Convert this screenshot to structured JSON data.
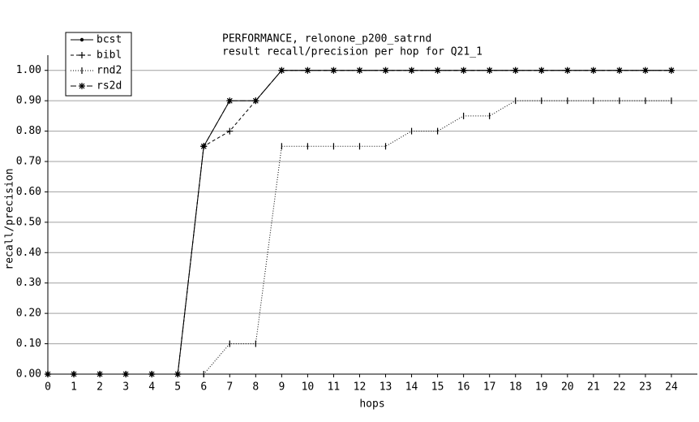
{
  "chart_data": {
    "type": "line",
    "title": "PERFORMANCE, relonone_p200_satrnd",
    "subtitle": "result recall/precision per hop for Q21_1",
    "x_label": "hops",
    "y_label": "recall/precision",
    "x": [
      0,
      1,
      2,
      3,
      4,
      5,
      6,
      7,
      8,
      9,
      10,
      11,
      12,
      13,
      14,
      15,
      16,
      17,
      18,
      19,
      20,
      21,
      22,
      23,
      24
    ],
    "series": [
      {
        "name": "bcst",
        "color": "#000000",
        "marker": "dot",
        "dash": "solid",
        "values": [
          0,
          0,
          0,
          0,
          0,
          0,
          0.75,
          0.9,
          0.9,
          1,
          1,
          1,
          1,
          1,
          1,
          1,
          1,
          1,
          1,
          1,
          1,
          1,
          1,
          1,
          1
        ]
      },
      {
        "name": "bibl",
        "color": "#000000",
        "marker": "plus",
        "dash": "dashed",
        "values": [
          0,
          0,
          0,
          0,
          0,
          0,
          0.75,
          0.8,
          0.9,
          1,
          1,
          1,
          1,
          1,
          1,
          1,
          1,
          1,
          1,
          1,
          1,
          1,
          1,
          1,
          1
        ]
      },
      {
        "name": "rnd2",
        "color": "#000000",
        "marker": "tick",
        "dash": "dotted",
        "values": [
          0,
          0,
          0,
          0,
          0,
          0,
          0,
          0.1,
          0.1,
          0.75,
          0.75,
          0.75,
          0.75,
          0.75,
          0.8,
          0.8,
          0.85,
          0.85,
          0.9,
          0.9,
          0.9,
          0.9,
          0.9,
          0.9,
          0.9
        ]
      },
      {
        "name": "rs2d",
        "color": "#000000",
        "marker": "star",
        "dash": "longdash",
        "values": [
          0,
          0,
          0,
          0,
          0,
          0,
          0.75,
          0.9,
          0.9,
          1,
          1,
          1,
          1,
          1,
          1,
          1,
          1,
          1,
          1,
          1,
          1,
          1,
          1,
          1,
          1
        ]
      }
    ],
    "xlim": [
      0,
      25
    ],
    "ylim": [
      0,
      1.05
    ],
    "xticks": [
      0,
      1,
      2,
      3,
      4,
      5,
      6,
      7,
      8,
      9,
      10,
      11,
      12,
      13,
      14,
      15,
      16,
      17,
      18,
      19,
      20,
      21,
      22,
      23,
      24
    ],
    "yticks": [
      {
        "value": 0,
        "label": "0.00"
      },
      {
        "value": 0.1,
        "label": "0.10"
      },
      {
        "value": 0.2,
        "label": "0.20"
      },
      {
        "value": 0.3,
        "label": "0.30"
      },
      {
        "value": 0.4,
        "label": "0.40"
      },
      {
        "value": 0.5,
        "label": "0.50"
      },
      {
        "value": 0.6,
        "label": "0.60"
      },
      {
        "value": 0.7,
        "label": "0.70"
      },
      {
        "value": 0.8,
        "label": "0.80"
      },
      {
        "value": 0.9,
        "label": "0.90"
      },
      {
        "value": 1,
        "label": "1.00"
      }
    ],
    "grid": true,
    "legend": "top-left"
  }
}
